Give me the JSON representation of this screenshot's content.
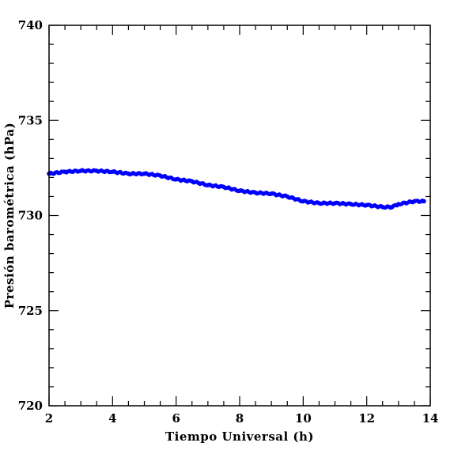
{
  "chart_data": {
    "type": "scatter",
    "xlabel": "Tiempo Universal (h)",
    "ylabel": "Presión barométrica (hPa)",
    "xlim": [
      2,
      14
    ],
    "ylim": [
      720,
      740
    ],
    "x_major_ticks": [
      2,
      4,
      6,
      8,
      10,
      12,
      14
    ],
    "x_minor_step": 0.5,
    "y_major_ticks": [
      720,
      725,
      730,
      735,
      740
    ],
    "y_minor_step": 1,
    "grid": false,
    "marker_color": "#0000ff",
    "series": [
      {
        "x": [
          2.0,
          2.5,
          3.0,
          3.5,
          4.0,
          4.5,
          5.0,
          5.5,
          6.0,
          6.5,
          7.0,
          7.5,
          8.0,
          8.5,
          9.0,
          9.5,
          10.0,
          10.5,
          11.0,
          11.5,
          12.0,
          12.5,
          12.8,
          13.0,
          13.5,
          13.8
        ],
        "y": [
          732.2,
          732.3,
          732.35,
          732.35,
          732.3,
          732.2,
          732.2,
          732.1,
          731.9,
          731.8,
          731.6,
          731.5,
          731.3,
          731.2,
          731.15,
          731.0,
          730.75,
          730.65,
          730.65,
          730.6,
          730.55,
          730.45,
          730.45,
          730.6,
          730.75,
          730.75
        ]
      }
    ]
  }
}
